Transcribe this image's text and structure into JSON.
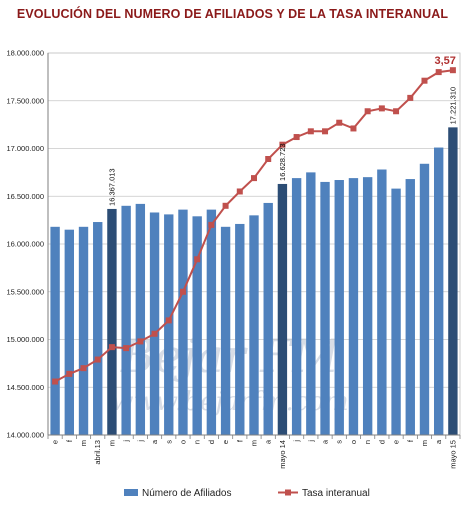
{
  "title": "EVOLUCIÓN DEL NUMERO DE AFILIADOS Y DE LA TASA INTERANUAL",
  "watermark": {
    "line1": "Bejar FM",
    "line2": "www.bejarfm.com"
  },
  "chart_data": {
    "type": "bar",
    "title": "EVOLUCIÓN DEL NUMERO DE AFILIADOS Y DE LA TASA INTERANUAL",
    "categories": [
      "e",
      "f",
      "m",
      "abril.13",
      "m",
      "j",
      "j",
      "a",
      "s",
      "o",
      "n",
      "d",
      "e",
      "f",
      "m",
      "a",
      "mayo 14",
      "j",
      "j",
      "a",
      "s",
      "o",
      "n",
      "d",
      "e",
      "f",
      "m",
      "a",
      "mayo 15"
    ],
    "ylim": [
      14000000,
      18000000
    ],
    "yticks": [
      "14.000.000",
      "14.500.000",
      "15.000.000",
      "15.500.000",
      "16.000.000",
      "16.500.000",
      "17.000.000",
      "17.500.000",
      "18.000.000"
    ],
    "grid": true,
    "legend_position": "bottom",
    "series": [
      {
        "name": "Número de Afiliados",
        "kind": "bar",
        "color": "#4f81bd",
        "highlight_color": "#2c4d75",
        "highlight_indices": [
          4,
          16,
          28
        ],
        "values": [
          16180000,
          16150000,
          16180000,
          16230000,
          16367013,
          16400000,
          16420000,
          16330000,
          16310000,
          16360000,
          16290000,
          16360000,
          16180000,
          16210000,
          16300000,
          16430000,
          16628723,
          16690000,
          16750000,
          16650000,
          16670000,
          16690000,
          16700000,
          16780000,
          16580000,
          16680000,
          16840000,
          17010000,
          17221310
        ]
      },
      {
        "name": "Tasa interanual",
        "kind": "line",
        "color": "#c0504d",
        "values": [
          14560000,
          14640000,
          14700000,
          14790000,
          14920000,
          14910000,
          14980000,
          15060000,
          15200000,
          15500000,
          15840000,
          16200000,
          16400000,
          16550000,
          16690000,
          16890000,
          17040000,
          17120000,
          17180000,
          17180000,
          17270000,
          17210000,
          17390000,
          17420000,
          17390000,
          17530000,
          17710000,
          17800000,
          17820000
        ]
      }
    ],
    "data_labels": [
      {
        "index": 4,
        "text": "16.367.013"
      },
      {
        "index": 16,
        "text": "16.628.723"
      },
      {
        "index": 28,
        "text": "17.221.310"
      }
    ],
    "rate_label": {
      "index": 28,
      "text": "3,57"
    }
  }
}
